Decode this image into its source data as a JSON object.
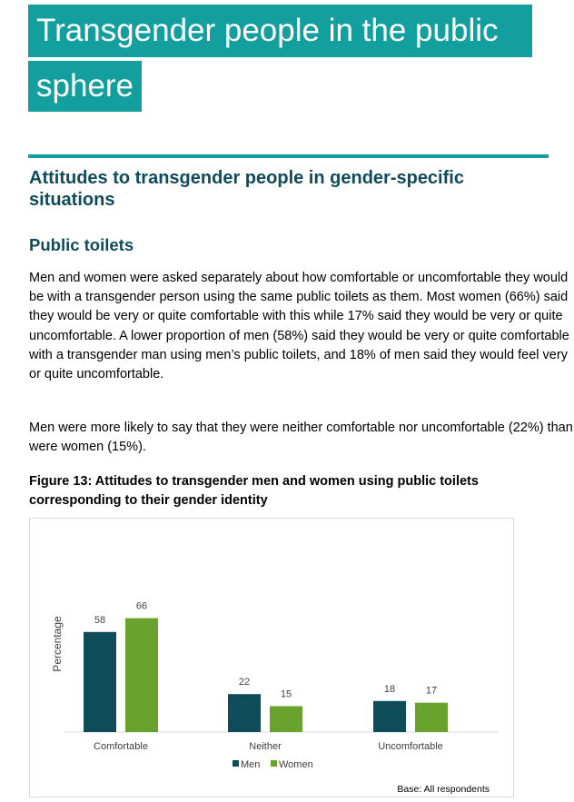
{
  "page": {
    "title_line1": "Transgender people in the public",
    "title_line2": "sphere",
    "section_heading": "Attitudes to transgender people in gender-specific situations",
    "subheading": "Public toilets",
    "para1": "Men and women were asked separately about how comfortable or uncomfortable they would be with a transgender person using the same public toilets as them. Most women (66%) said they would be very or quite comfortable with this while 17% said they would be very or quite uncomfortable. A lower proportion of men (58%) said they would be very or quite comfortable with a transgender man using men’s public toilets, and 18% of men said they would feel very or quite uncomfortable.",
    "para2": "Men were more likely to say that they were neither comfortable nor uncomfortable (22%) than were women (15%).",
    "figure_caption": "Figure 13: Attitudes to transgender men and women using public toilets corresponding to their gender identity",
    "colors": {
      "accent": "#129f9d",
      "heading": "#0e4c5a",
      "men": "#0e4c5a",
      "women": "#6aa22e"
    }
  },
  "chart_data": {
    "type": "bar",
    "categories": [
      "Comfortable",
      "Neither",
      "Uncomfortable"
    ],
    "series": [
      {
        "name": "Men",
        "values": [
          58,
          22,
          18
        ],
        "color": "#0e4c5a"
      },
      {
        "name": "Women",
        "values": [
          66,
          15,
          17
        ],
        "color": "#6aa22e"
      }
    ],
    "ylabel": "Percentage",
    "ylim": [
      0,
      100
    ],
    "legend": "bottom",
    "note": "Base: All respondents",
    "grid": false
  }
}
